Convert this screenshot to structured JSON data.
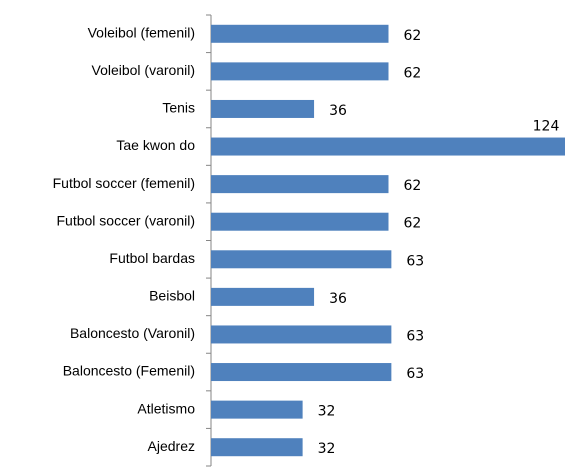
{
  "chart_data": {
    "type": "bar",
    "orientation": "horizontal",
    "categories": [
      "Voleibol (femenil)",
      "Voleibol (varonil)",
      "Tenis",
      "Tae kwon do",
      "Futbol soccer (femenil)",
      "Futbol soccer (varonil)",
      "Futbol bardas",
      "Beisbol",
      "Baloncesto (Varonil)",
      "Baloncesto (Femenil)",
      "Atletismo",
      "Ajedrez"
    ],
    "values": [
      62,
      62,
      36,
      124,
      62,
      62,
      63,
      36,
      63,
      63,
      32,
      32
    ],
    "color": "#4f81bd"
  }
}
